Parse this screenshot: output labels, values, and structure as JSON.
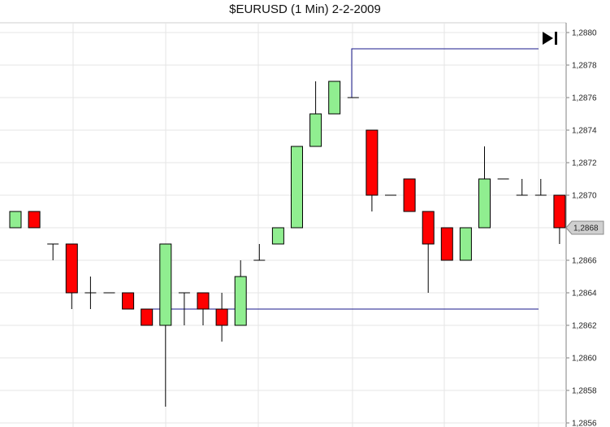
{
  "chart_data": {
    "type": "candlestick",
    "title": "$EURUSD (1 Min)  2-2-2009",
    "ylim": [
      1.2856,
      1.288
    ],
    "y_ticks": [
      "1,2856",
      "1,2858",
      "1,2860",
      "1,2862",
      "1,2864",
      "1,2866",
      "1,2868",
      "1,2870",
      "1,2872",
      "1,2874",
      "1,2876",
      "1,2878",
      "1,2880"
    ],
    "last_price_label": "1,2868",
    "grid": true,
    "colors": {
      "up": "#90EE90",
      "down": "#FF0000",
      "wick": "#000000",
      "line": "#1a1a8c"
    },
    "candles": [
      {
        "o": 1.2868,
        "h": 1.2869,
        "l": 1.2868,
        "c": 1.2869
      },
      {
        "o": 1.2869,
        "h": 1.2869,
        "l": 1.2868,
        "c": 1.2868
      },
      {
        "o": 1.2867,
        "h": 1.2867,
        "l": 1.2866,
        "c": 1.2867
      },
      {
        "o": 1.2867,
        "h": 1.2867,
        "l": 1.2863,
        "c": 1.2864
      },
      {
        "o": 1.2864,
        "h": 1.2865,
        "l": 1.2863,
        "c": 1.2864
      },
      {
        "o": 1.2864,
        "h": 1.2864,
        "l": 1.2864,
        "c": 1.2864
      },
      {
        "o": 1.2864,
        "h": 1.2864,
        "l": 1.2863,
        "c": 1.2863
      },
      {
        "o": 1.2863,
        "h": 1.2863,
        "l": 1.2862,
        "c": 1.2862
      },
      {
        "o": 1.2862,
        "h": 1.2867,
        "l": 1.2857,
        "c": 1.2867
      },
      {
        "o": 1.2864,
        "h": 1.2864,
        "l": 1.2862,
        "c": 1.2864
      },
      {
        "o": 1.2864,
        "h": 1.2864,
        "l": 1.2862,
        "c": 1.2863
      },
      {
        "o": 1.2863,
        "h": 1.2864,
        "l": 1.2861,
        "c": 1.2862
      },
      {
        "o": 1.2862,
        "h": 1.2866,
        "l": 1.2862,
        "c": 1.2865
      },
      {
        "o": 1.2866,
        "h": 1.2867,
        "l": 1.2866,
        "c": 1.2866
      },
      {
        "o": 1.2867,
        "h": 1.2868,
        "l": 1.2867,
        "c": 1.2868
      },
      {
        "o": 1.2868,
        "h": 1.2873,
        "l": 1.2868,
        "c": 1.2873
      },
      {
        "o": 1.2873,
        "h": 1.2877,
        "l": 1.2873,
        "c": 1.2875
      },
      {
        "o": 1.2875,
        "h": 1.2877,
        "l": 1.2875,
        "c": 1.2877
      },
      {
        "o": 1.2876,
        "h": 1.2876,
        "l": 1.2876,
        "c": 1.2876
      },
      {
        "o": 1.2874,
        "h": 1.2874,
        "l": 1.2869,
        "c": 1.287
      },
      {
        "o": 1.287,
        "h": 1.287,
        "l": 1.287,
        "c": 1.287
      },
      {
        "o": 1.2871,
        "h": 1.2871,
        "l": 1.2869,
        "c": 1.2869
      },
      {
        "o": 1.2869,
        "h": 1.2869,
        "l": 1.2864,
        "c": 1.2867
      },
      {
        "o": 1.2868,
        "h": 1.2868,
        "l": 1.2866,
        "c": 1.2866
      },
      {
        "o": 1.2866,
        "h": 1.2868,
        "l": 1.2866,
        "c": 1.2868
      },
      {
        "o": 1.2868,
        "h": 1.2873,
        "l": 1.2868,
        "c": 1.2871
      },
      {
        "o": 1.2871,
        "h": 1.2871,
        "l": 1.2871,
        "c": 1.2871
      },
      {
        "o": 1.287,
        "h": 1.2871,
        "l": 1.287,
        "c": 1.287
      },
      {
        "o": 1.287,
        "h": 1.2871,
        "l": 1.287,
        "c": 1.287
      },
      {
        "o": 1.287,
        "h": 1.287,
        "l": 1.2867,
        "c": 1.2868
      }
    ],
    "level_lines": [
      {
        "name": "support-line",
        "price": 1.2863
      },
      {
        "name": "resistance-line",
        "price": 1.2879
      }
    ]
  }
}
